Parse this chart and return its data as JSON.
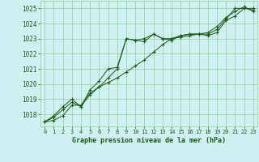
{
  "title": "Graphe pression niveau de la mer (hPa)",
  "x_labels": [
    "0",
    "1",
    "2",
    "3",
    "4",
    "5",
    "6",
    "7",
    "8",
    "9",
    "10",
    "11",
    "12",
    "13",
    "14",
    "15",
    "16",
    "17",
    "18",
    "19",
    "20",
    "21",
    "22",
    "23"
  ],
  "ylim": [
    1017.2,
    1025.5
  ],
  "yticks": [
    1018,
    1019,
    1020,
    1021,
    1022,
    1023,
    1024,
    1025
  ],
  "background_color": "#cff0f0",
  "grid_color": "#99cc99",
  "line_color": "#1a5c1a",
  "series": [
    [
      1017.5,
      1017.6,
      1017.9,
      1018.6,
      1018.6,
      1019.4,
      1019.8,
      1020.1,
      1020.4,
      1020.8,
      1021.2,
      1021.6,
      1022.1,
      1022.6,
      1023.0,
      1023.1,
      1023.2,
      1023.3,
      1023.3,
      1023.6,
      1024.3,
      1025.0,
      1025.0,
      1025.0
    ],
    [
      1017.5,
      1017.8,
      1018.3,
      1018.8,
      1018.5,
      1019.3,
      1019.8,
      1020.4,
      1021.0,
      1023.0,
      1022.9,
      1023.0,
      1023.3,
      1023.0,
      1023.0,
      1023.2,
      1023.3,
      1023.3,
      1023.2,
      1023.4,
      1024.2,
      1024.5,
      1025.0,
      1024.9
    ],
    [
      1017.5,
      1017.9,
      1018.5,
      1019.0,
      1018.5,
      1019.6,
      1020.2,
      1021.0,
      1021.1,
      1023.0,
      1022.9,
      1022.8,
      1023.3,
      1023.0,
      1022.9,
      1023.2,
      1023.3,
      1023.3,
      1023.4,
      1023.8,
      1024.4,
      1024.8,
      1025.1,
      1024.8
    ]
  ]
}
